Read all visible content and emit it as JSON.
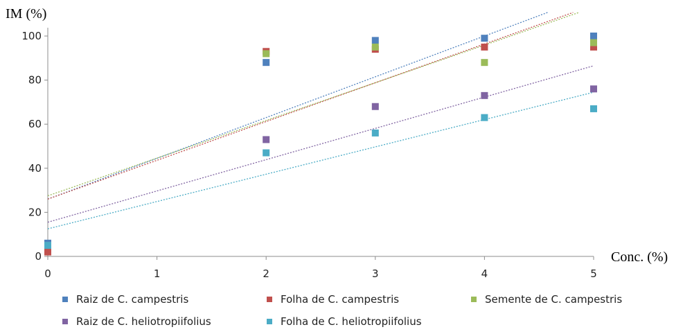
{
  "chart_data": {
    "type": "scatter",
    "title": "",
    "xlabel": "Conc. (%)",
    "ylabel": "IM (%)",
    "xlim": [
      0,
      5
    ],
    "ylim": [
      0,
      105
    ],
    "x_ticks": [
      "0",
      "1",
      "2",
      "3",
      "4",
      "5"
    ],
    "y_ticks": [
      "0",
      "20",
      "40",
      "60",
      "80",
      "100"
    ],
    "grid": false,
    "legend_position": "bottom",
    "trendlines": true,
    "series": [
      {
        "name": "Raiz de C. campestris",
        "color": "#4f81bd",
        "x": [
          0,
          2,
          3,
          4,
          5
        ],
        "y": [
          6,
          88,
          98,
          99,
          100
        ],
        "trend": {
          "intercept": 26,
          "slope": 18.5
        }
      },
      {
        "name": "Folha de C. campestris",
        "color": "#c0504d",
        "x": [
          0,
          2,
          3,
          4,
          5
        ],
        "y": [
          2,
          93,
          94,
          95,
          95
        ],
        "trend": {
          "intercept": 26,
          "slope": 17.6
        }
      },
      {
        "name": "Semente  de C. campestris",
        "color": "#9bbb59",
        "x": [
          0,
          2,
          3,
          4,
          5
        ],
        "y": [
          5,
          92,
          95,
          88,
          97
        ],
        "trend": {
          "intercept": 27.5,
          "slope": 17.1
        }
      },
      {
        "name": "Raiz de C. heliotropiifolius",
        "color": "#8064a2",
        "x": [
          0,
          2,
          3,
          4,
          5
        ],
        "y": [
          5,
          53,
          68,
          73,
          76
        ],
        "trend": {
          "intercept": 15.5,
          "slope": 14.2
        }
      },
      {
        "name": "Folha de C. heliotropiifolius",
        "color": "#4bacc6",
        "x": [
          0,
          2,
          3,
          4,
          5
        ],
        "y": [
          5,
          47,
          56,
          63,
          67
        ],
        "trend": {
          "intercept": 12.5,
          "slope": 12.4
        }
      }
    ]
  }
}
